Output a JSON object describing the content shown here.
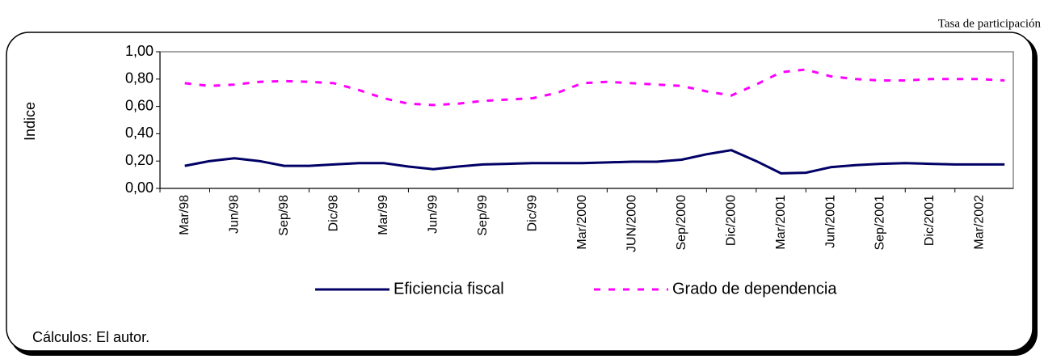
{
  "header": {
    "text": "Tasa de participación"
  },
  "chart_data": {
    "type": "line",
    "y_label": "Indice",
    "note": "Cálculos: El autor.",
    "categories": [
      "Mar/98",
      null,
      "Jun/98",
      null,
      "Sep/98",
      null,
      "Dic/98",
      null,
      "Mar/99",
      null,
      "Jun/99",
      null,
      "Sep/99",
      null,
      "Dic/99",
      null,
      "Mar/2000",
      null,
      "JUN/2000",
      null,
      "Sep/2000",
      null,
      "Dic/2000",
      null,
      "Mar/2001",
      null,
      "Jun/2001",
      null,
      "Sep/2001",
      null,
      "Dic/2001",
      null,
      "Mar/2002",
      null
    ],
    "series": [
      {
        "name": "Eficiencia fiscal",
        "color": "#000066",
        "style": "solid",
        "values": [
          0.165,
          0.2,
          0.22,
          0.2,
          0.165,
          0.165,
          0.175,
          0.185,
          0.185,
          0.16,
          0.14,
          0.16,
          0.175,
          0.18,
          0.185,
          0.185,
          0.185,
          0.19,
          0.195,
          0.195,
          0.21,
          0.25,
          0.28,
          0.2,
          0.11,
          0.115,
          0.155,
          0.17,
          0.18,
          0.185,
          0.18,
          0.175,
          0.175,
          0.175
        ]
      },
      {
        "name": "Grado de dependencia",
        "color": "#ff00ff",
        "style": "dashed",
        "values": [
          0.77,
          0.75,
          0.76,
          0.78,
          0.785,
          0.78,
          0.77,
          0.72,
          0.66,
          0.62,
          0.61,
          0.62,
          0.64,
          0.65,
          0.66,
          0.7,
          0.77,
          0.78,
          0.77,
          0.76,
          0.75,
          0.71,
          0.68,
          0.76,
          0.85,
          0.87,
          0.82,
          0.8,
          0.79,
          0.79,
          0.8,
          0.8,
          0.8,
          0.79
        ]
      }
    ],
    "ylim": [
      0,
      1
    ],
    "yticks": [
      {
        "value": 0,
        "label": "0,00"
      },
      {
        "value": 0.2,
        "label": "0,20"
      },
      {
        "value": 0.4,
        "label": "0,40"
      },
      {
        "value": 0.6,
        "label": "0,60"
      },
      {
        "value": 0.8,
        "label": "0,80"
      },
      {
        "value": 1,
        "label": "1,00"
      }
    ],
    "grid": false,
    "legend": "bottom"
  }
}
